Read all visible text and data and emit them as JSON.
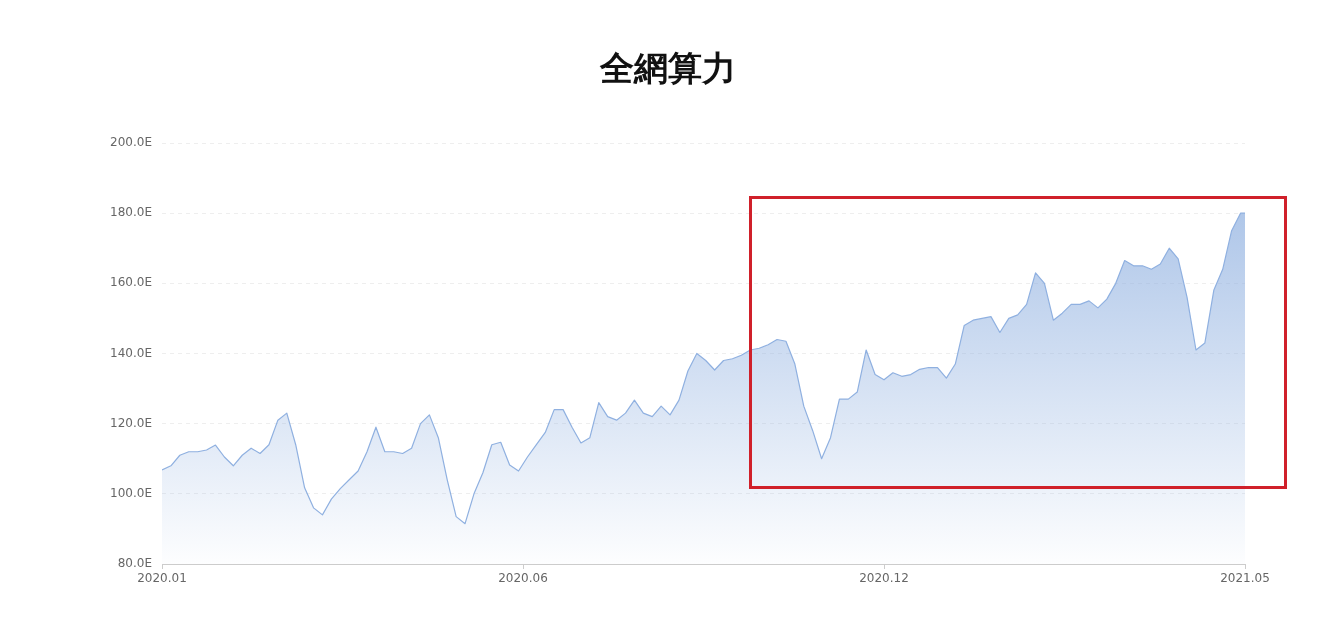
{
  "chart_data": {
    "type": "area",
    "title": "全網算力",
    "x": [
      "2020-01-01",
      "2020-01-05",
      "2020-01-09",
      "2020-01-13",
      "2020-01-17",
      "2020-01-21",
      "2020-01-25",
      "2020-01-29",
      "2020-02-02",
      "2020-02-06",
      "2020-02-10",
      "2020-02-14",
      "2020-02-18",
      "2020-02-22",
      "2020-02-26",
      "2020-03-01",
      "2020-03-05",
      "2020-03-09",
      "2020-03-13",
      "2020-03-17",
      "2020-03-21",
      "2020-03-25",
      "2020-03-29",
      "2020-04-02",
      "2020-04-06",
      "2020-04-10",
      "2020-04-14",
      "2020-04-18",
      "2020-04-22",
      "2020-04-26",
      "2020-04-30",
      "2020-05-04",
      "2020-05-08",
      "2020-05-12",
      "2020-05-16",
      "2020-05-20",
      "2020-05-24",
      "2020-05-28",
      "2020-06-01",
      "2020-06-05",
      "2020-06-09",
      "2020-06-13",
      "2020-06-17",
      "2020-06-21",
      "2020-06-25",
      "2020-06-29",
      "2020-07-03",
      "2020-07-07",
      "2020-07-11",
      "2020-07-15",
      "2020-07-19",
      "2020-07-23",
      "2020-07-27",
      "2020-07-31",
      "2020-08-04",
      "2020-08-08",
      "2020-08-12",
      "2020-08-16",
      "2020-08-20",
      "2020-08-24",
      "2020-08-28",
      "2020-09-01",
      "2020-09-05",
      "2020-09-09",
      "2020-09-13",
      "2020-09-17",
      "2020-09-21",
      "2020-09-25",
      "2020-09-29",
      "2020-10-03",
      "2020-10-07",
      "2020-10-11",
      "2020-10-15",
      "2020-10-19",
      "2020-10-23",
      "2020-10-27",
      "2020-10-31",
      "2020-11-04",
      "2020-11-08",
      "2020-11-12",
      "2020-11-16",
      "2020-11-20",
      "2020-11-24",
      "2020-11-28",
      "2020-12-02",
      "2020-12-06",
      "2020-12-10",
      "2020-12-14",
      "2020-12-18",
      "2020-12-22",
      "2020-12-26",
      "2020-12-30",
      "2021-01-03",
      "2021-01-07",
      "2021-01-11",
      "2021-01-15",
      "2021-01-19",
      "2021-01-23",
      "2021-01-27",
      "2021-01-31",
      "2021-02-04",
      "2021-02-08",
      "2021-02-12",
      "2021-02-16",
      "2021-02-20",
      "2021-02-24",
      "2021-02-28",
      "2021-03-04",
      "2021-03-08",
      "2021-03-12",
      "2021-03-16",
      "2021-03-20",
      "2021-03-24",
      "2021-03-28",
      "2021-04-01",
      "2021-04-05",
      "2021-04-09",
      "2021-04-13",
      "2021-04-17",
      "2021-04-21",
      "2021-04-25",
      "2021-04-29",
      "2021-05-01"
    ],
    "series": [
      {
        "color": "#8fb0e0",
        "values": [
          106.8,
          108,
          111,
          112,
          112,
          112.5,
          113.9,
          110.5,
          108,
          111,
          113,
          111.5,
          114,
          121,
          123,
          114,
          101.7,
          96,
          94,
          98.5,
          101.5,
          104,
          106.5,
          112,
          119,
          112,
          112,
          111.5,
          113,
          120,
          122.5,
          116,
          104,
          93.5,
          91.5,
          100,
          106,
          114,
          114.7,
          108.2,
          106.5,
          110.5,
          114,
          117.5,
          124,
          124,
          119,
          114.5,
          116,
          126,
          122,
          121,
          123,
          126.7,
          123,
          122,
          125,
          122.5,
          126.7,
          135,
          140,
          138,
          135.3,
          138,
          138.5,
          139.5,
          141,
          141.5,
          142.5,
          144,
          143.5,
          137,
          125,
          118,
          110,
          116,
          127,
          127,
          129,
          141,
          134,
          132.5,
          134.5,
          133.5,
          134,
          135.5,
          136,
          136,
          133,
          137,
          148,
          149.5,
          150,
          150.5,
          146,
          150,
          151,
          154,
          163,
          160,
          149.5,
          151.5,
          154,
          154,
          155,
          153,
          155.5,
          160,
          166.5,
          165,
          165,
          164,
          165.5,
          170,
          167,
          156,
          141,
          143,
          158,
          164,
          175,
          180,
          180
        ]
      }
    ],
    "xlim": [
      "2020-01-01",
      "2021-05-01"
    ],
    "xticks": [
      {
        "value": "2020-01-01",
        "label": "2020.01"
      },
      {
        "value": "2020-06-11",
        "label": "2020.06"
      },
      {
        "value": "2020-11-20",
        "label": "2020.12"
      },
      {
        "value": "2021-05-01",
        "label": "2021.05"
      }
    ],
    "ylim": [
      80,
      200
    ],
    "yticks": [
      {
        "value": 80,
        "label": "80.0E"
      },
      {
        "value": 100,
        "label": "100.0E"
      },
      {
        "value": 120,
        "label": "120.0E"
      },
      {
        "value": 140,
        "label": "140.0E"
      },
      {
        "value": 160,
        "label": "160.0E"
      },
      {
        "value": 180,
        "label": "180.0E"
      },
      {
        "value": 200,
        "label": "200.0E"
      }
    ],
    "grid": "y",
    "legend": false,
    "marker": "none"
  }
}
